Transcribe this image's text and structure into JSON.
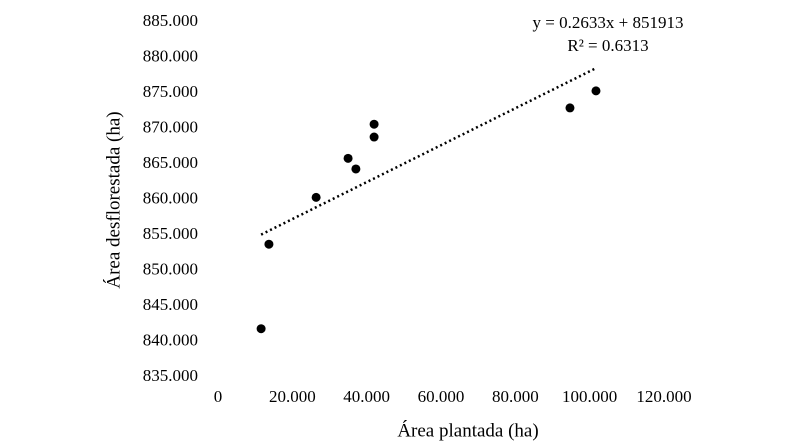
{
  "chart_data": {
    "type": "scatter",
    "x_label": "Área plantada (ha)",
    "y_label": "Área desflorestada (ha)",
    "annotations": [
      "y = 0.2633x + 851913",
      "R² = 0.6313"
    ],
    "trendline": true,
    "color": "#000000",
    "x": [
      11600,
      13700,
      26400,
      35000,
      37100,
      42000,
      42000,
      94700,
      101700
    ],
    "values": [
      841800,
      853700,
      860300,
      865800,
      864300,
      870600,
      868800,
      872900,
      875300
    ],
    "xlim": [
      0,
      120000
    ],
    "ylim": [
      835000,
      885000
    ],
    "xticks": [
      0,
      {
        "value": 20000,
        "label": "20.000"
      },
      {
        "value": 40000,
        "label": "40.000"
      },
      {
        "value": 60000,
        "label": "60.000"
      },
      {
        "value": 80000,
        "label": "80.000"
      },
      {
        "value": 100000,
        "label": "100.000"
      },
      {
        "value": 120000,
        "label": "120.000"
      }
    ],
    "yticks": [
      {
        "value": 835000,
        "label": "835.000"
      },
      {
        "value": 840000,
        "label": "840.000"
      },
      {
        "value": 845000,
        "label": "845.000"
      },
      {
        "value": 850000,
        "label": "850.000"
      },
      {
        "value": 855000,
        "label": "855.000"
      },
      {
        "value": 860000,
        "label": "860.000"
      },
      {
        "value": 865000,
        "label": "865.000"
      },
      {
        "value": 870000,
        "label": "870.000"
      },
      {
        "value": 875000,
        "label": "875.000"
      },
      {
        "value": 880000,
        "label": "880.000"
      },
      {
        "value": 885000,
        "label": "885.000"
      }
    ]
  }
}
